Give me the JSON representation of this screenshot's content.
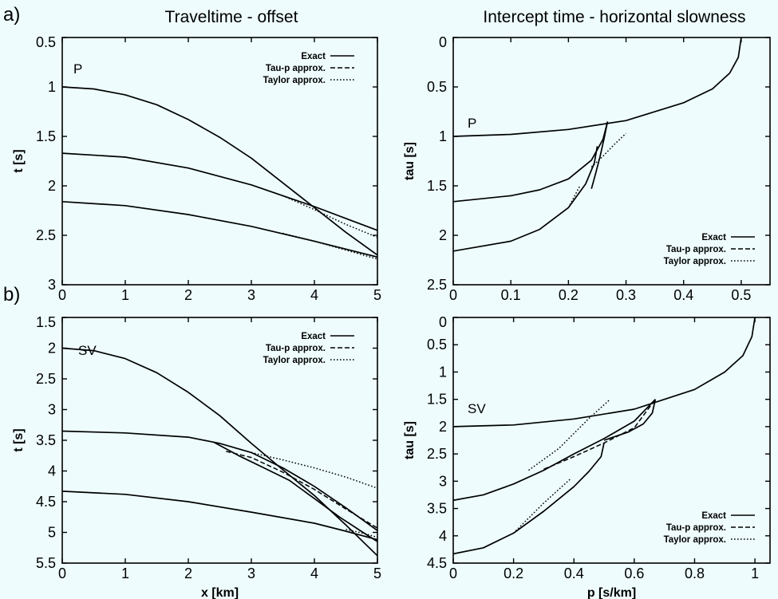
{
  "figure": {
    "title_left": "Traveltime - offset",
    "title_right": "Intercept time - horizontal slowness",
    "row_labels": [
      "a)",
      "b)"
    ],
    "legend_entries": [
      "Exact",
      "Tau-p approx.",
      "Taylor approx."
    ]
  },
  "chart_data": [
    {
      "type": "line",
      "panel_label": "a)",
      "title": "Traveltime - offset",
      "xlabel": "",
      "ylabel": "t [s]",
      "xlim": [
        0,
        5
      ],
      "ylim": [
        0.5,
        3
      ],
      "y_inverted": true,
      "xticks": [
        "0",
        "1",
        "2",
        "3",
        "4",
        "5"
      ],
      "yticks": [
        "0.5",
        "1",
        "1.5",
        "2",
        "2.5",
        "3"
      ],
      "wave_label": "P",
      "legend": [
        "Exact",
        "Tau-p approx.",
        "Taylor approx."
      ],
      "legend_position": "top-right",
      "series": [
        {
          "style": "solid",
          "x": [
            0,
            0.5,
            1,
            1.5,
            2,
            2.5,
            3,
            3.5,
            4,
            4.5,
            5
          ],
          "y": [
            1.0,
            1.02,
            1.08,
            1.18,
            1.33,
            1.51,
            1.72,
            1.97,
            2.22,
            2.47,
            2.7
          ]
        },
        {
          "style": "solid",
          "x": [
            0,
            1,
            2,
            3,
            3.5,
            4,
            4.5,
            5
          ],
          "y": [
            1.67,
            1.71,
            1.82,
            1.99,
            2.1,
            2.21,
            2.33,
            2.45
          ]
        },
        {
          "style": "solid",
          "x": [
            0,
            1,
            2,
            3,
            4,
            5
          ],
          "y": [
            2.16,
            2.2,
            2.29,
            2.41,
            2.56,
            2.72
          ]
        },
        {
          "style": "dotted",
          "x": [
            3.5,
            4,
            4.5,
            5
          ],
          "y": [
            2.1,
            2.24,
            2.39,
            2.52
          ]
        },
        {
          "style": "dotted",
          "x": [
            3.5,
            4,
            4.5,
            5
          ],
          "y": [
            2.48,
            2.56,
            2.65,
            2.74
          ]
        }
      ]
    },
    {
      "type": "line",
      "title": "Intercept time - horizontal slowness",
      "xlabel": "",
      "ylabel": "tau [s]",
      "xlim": [
        0,
        0.55
      ],
      "ylim": [
        0,
        2.5
      ],
      "y_inverted": true,
      "xticks": [
        "0",
        "0.1",
        "0.2",
        "0.3",
        "0.4",
        "0.5"
      ],
      "yticks": [
        "0",
        "0.5",
        "1",
        "1.5",
        "2",
        "2.5"
      ],
      "wave_label": "P",
      "legend": [
        "Exact",
        "Tau-p approx.",
        "Taylor approx."
      ],
      "legend_position": "bottom-right",
      "series": [
        {
          "style": "solid",
          "x": [
            0,
            0.1,
            0.2,
            0.3,
            0.4,
            0.45,
            0.48,
            0.495,
            0.5
          ],
          "y": [
            1.0,
            0.98,
            0.93,
            0.84,
            0.66,
            0.52,
            0.36,
            0.2,
            0.0
          ]
        },
        {
          "style": "solid",
          "x": [
            0,
            0.1,
            0.15,
            0.2,
            0.24,
            0.26,
            0.268
          ],
          "y": [
            1.66,
            1.6,
            1.54,
            1.43,
            1.24,
            1.03,
            0.85
          ]
        },
        {
          "style": "solid",
          "x": [
            0,
            0.1,
            0.15,
            0.2,
            0.23,
            0.245,
            0.25
          ],
          "y": [
            2.16,
            2.06,
            1.94,
            1.72,
            1.48,
            1.27,
            1.1
          ]
        },
        {
          "style": "solid",
          "x": [
            0.268,
            0.262,
            0.255,
            0.247,
            0.24
          ],
          "y": [
            0.85,
            1.02,
            1.2,
            1.38,
            1.53
          ]
        },
        {
          "style": "dotted",
          "x": [
            0.24,
            0.26,
            0.28,
            0.3
          ],
          "y": [
            1.31,
            1.2,
            1.08,
            0.97
          ]
        },
        {
          "style": "dotted",
          "x": [
            0.2,
            0.21,
            0.22
          ],
          "y": [
            1.72,
            1.61,
            1.5
          ]
        }
      ]
    },
    {
      "type": "line",
      "panel_label": "b)",
      "title": "",
      "xlabel": "x [km]",
      "ylabel": "t [s]",
      "xlim": [
        0,
        5
      ],
      "ylim": [
        1.5,
        5.5
      ],
      "y_inverted": true,
      "xticks": [
        "0",
        "1",
        "2",
        "3",
        "4",
        "5"
      ],
      "yticks": [
        "1.5",
        "2",
        "2.5",
        "3",
        "3.5",
        "4",
        "4.5",
        "5",
        "5.5"
      ],
      "wave_label": "SV",
      "legend": [
        "Exact",
        "Tau-p approx.",
        "Taylor approx."
      ],
      "legend_position": "top-right",
      "series": [
        {
          "style": "solid",
          "x": [
            0,
            0.5,
            1,
            1.5,
            2,
            2.5,
            3,
            3.5,
            4,
            4.5,
            5
          ],
          "y": [
            2.0,
            2.04,
            2.17,
            2.4,
            2.72,
            3.1,
            3.55,
            3.98,
            4.4,
            4.88,
            5.38
          ]
        },
        {
          "style": "solid",
          "x": [
            0,
            1,
            2,
            2.5,
            3,
            3.5,
            4,
            4.5,
            5
          ],
          "y": [
            3.35,
            3.38,
            3.45,
            3.55,
            3.7,
            3.95,
            4.25,
            4.6,
            4.97
          ]
        },
        {
          "style": "solid",
          "x": [
            0,
            1,
            2,
            3,
            4,
            4.5,
            5
          ],
          "y": [
            4.33,
            4.38,
            4.5,
            4.67,
            4.85,
            4.98,
            5.12
          ]
        },
        {
          "style": "solid",
          "x": [
            2.4,
            2.8,
            3.2,
            3.6,
            4,
            4.4,
            4.8,
            5
          ],
          "y": [
            3.53,
            3.75,
            3.95,
            4.15,
            4.45,
            4.75,
            5.02,
            5.15
          ]
        },
        {
          "style": "dashed",
          "x": [
            2.6,
            3,
            3.5,
            4,
            4.5,
            5
          ],
          "y": [
            3.68,
            3.78,
            4.02,
            4.3,
            4.62,
            4.93
          ]
        },
        {
          "style": "dotted",
          "x": [
            3,
            3.5,
            4,
            4.5,
            5
          ],
          "y": [
            3.7,
            3.82,
            3.95,
            4.1,
            4.28
          ]
        },
        {
          "style": "dotted",
          "x": [
            4.5,
            4.8,
            5
          ],
          "y": [
            4.95,
            5.02,
            5.08
          ]
        }
      ]
    },
    {
      "type": "line",
      "title": "",
      "xlabel": "p [s/km]",
      "ylabel": "tau [s]",
      "xlim": [
        0,
        1.05
      ],
      "ylim": [
        0,
        4.5
      ],
      "y_inverted": true,
      "xticks": [
        "0",
        "0.2",
        "0.4",
        "0.6",
        "0.8",
        "1"
      ],
      "yticks": [
        "0",
        "0.5",
        "1",
        "1.5",
        "2",
        "2.5",
        "3",
        "3.5",
        "4",
        "4.5"
      ],
      "wave_label": "SV",
      "legend": [
        "Exact",
        "Tau-p approx.",
        "Taylor approx."
      ],
      "legend_position": "bottom-right",
      "series": [
        {
          "style": "solid",
          "x": [
            0,
            0.2,
            0.4,
            0.6,
            0.8,
            0.9,
            0.96,
            0.99,
            1.0
          ],
          "y": [
            2.0,
            1.97,
            1.86,
            1.68,
            1.32,
            1.0,
            0.7,
            0.35,
            0.0
          ]
        },
        {
          "style": "solid",
          "x": [
            0,
            0.1,
            0.2,
            0.3,
            0.4,
            0.5,
            0.6,
            0.67
          ],
          "y": [
            3.35,
            3.25,
            3.05,
            2.8,
            2.5,
            2.22,
            1.9,
            1.5
          ]
        },
        {
          "style": "solid",
          "x": [
            0.67,
            0.66,
            0.63,
            0.58,
            0.5
          ],
          "y": [
            1.5,
            1.75,
            1.95,
            2.1,
            2.25
          ]
        },
        {
          "style": "solid",
          "x": [
            0,
            0.1,
            0.2,
            0.3,
            0.4,
            0.45,
            0.49,
            0.5
          ],
          "y": [
            4.33,
            4.22,
            3.95,
            3.55,
            3.1,
            2.82,
            2.55,
            2.3
          ]
        },
        {
          "style": "dashed",
          "x": [
            0.3,
            0.4,
            0.5,
            0.6,
            0.67
          ],
          "y": [
            2.78,
            2.55,
            2.3,
            2.02,
            1.5
          ]
        },
        {
          "style": "dotted",
          "x": [
            0.25,
            0.35,
            0.45,
            0.52
          ],
          "y": [
            2.8,
            2.4,
            1.85,
            1.5
          ]
        },
        {
          "style": "dotted",
          "x": [
            0.2,
            0.3,
            0.39
          ],
          "y": [
            3.95,
            3.4,
            2.95
          ]
        }
      ]
    }
  ]
}
